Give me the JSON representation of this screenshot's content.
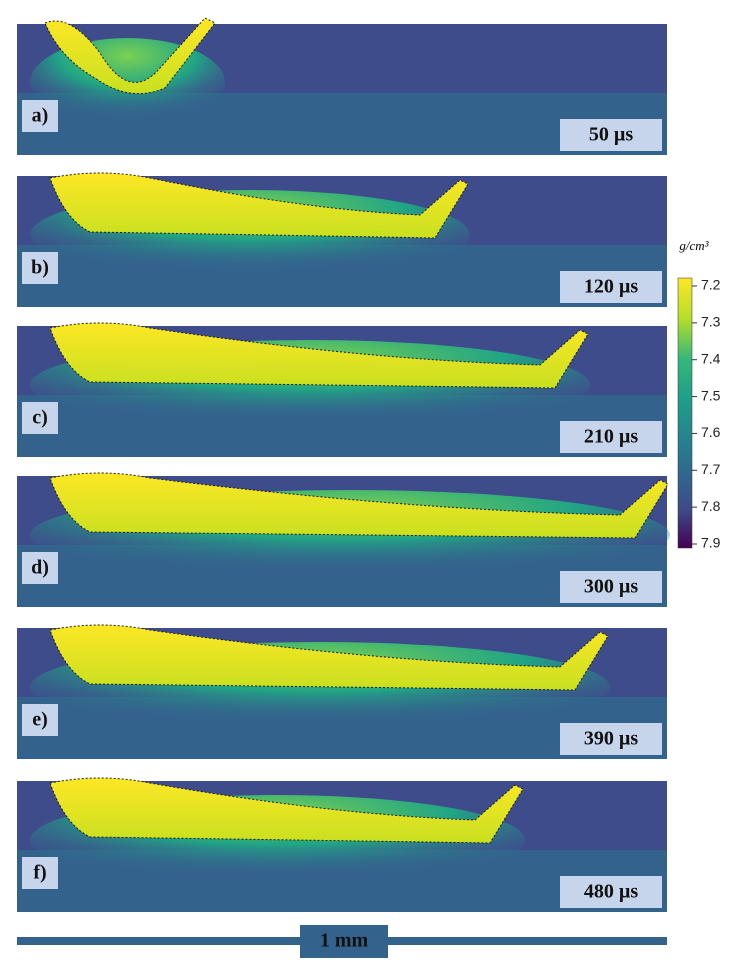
{
  "panels": [
    {
      "label": "a)",
      "time": "50 µs"
    },
    {
      "label": "b)",
      "time": "120 µs"
    },
    {
      "label": "c)",
      "time": "210 µs"
    },
    {
      "label": "d)",
      "time": "300 µs"
    },
    {
      "label": "e)",
      "time": "390 µs"
    },
    {
      "label": "f)",
      "time": "480 µs"
    }
  ],
  "colorbar": {
    "unit": "g/cm³",
    "ticks": [
      7.2,
      7.3,
      7.4,
      7.5,
      7.6,
      7.7,
      7.8,
      7.9
    ]
  },
  "scale_bar": {
    "label": "1 mm"
  }
}
